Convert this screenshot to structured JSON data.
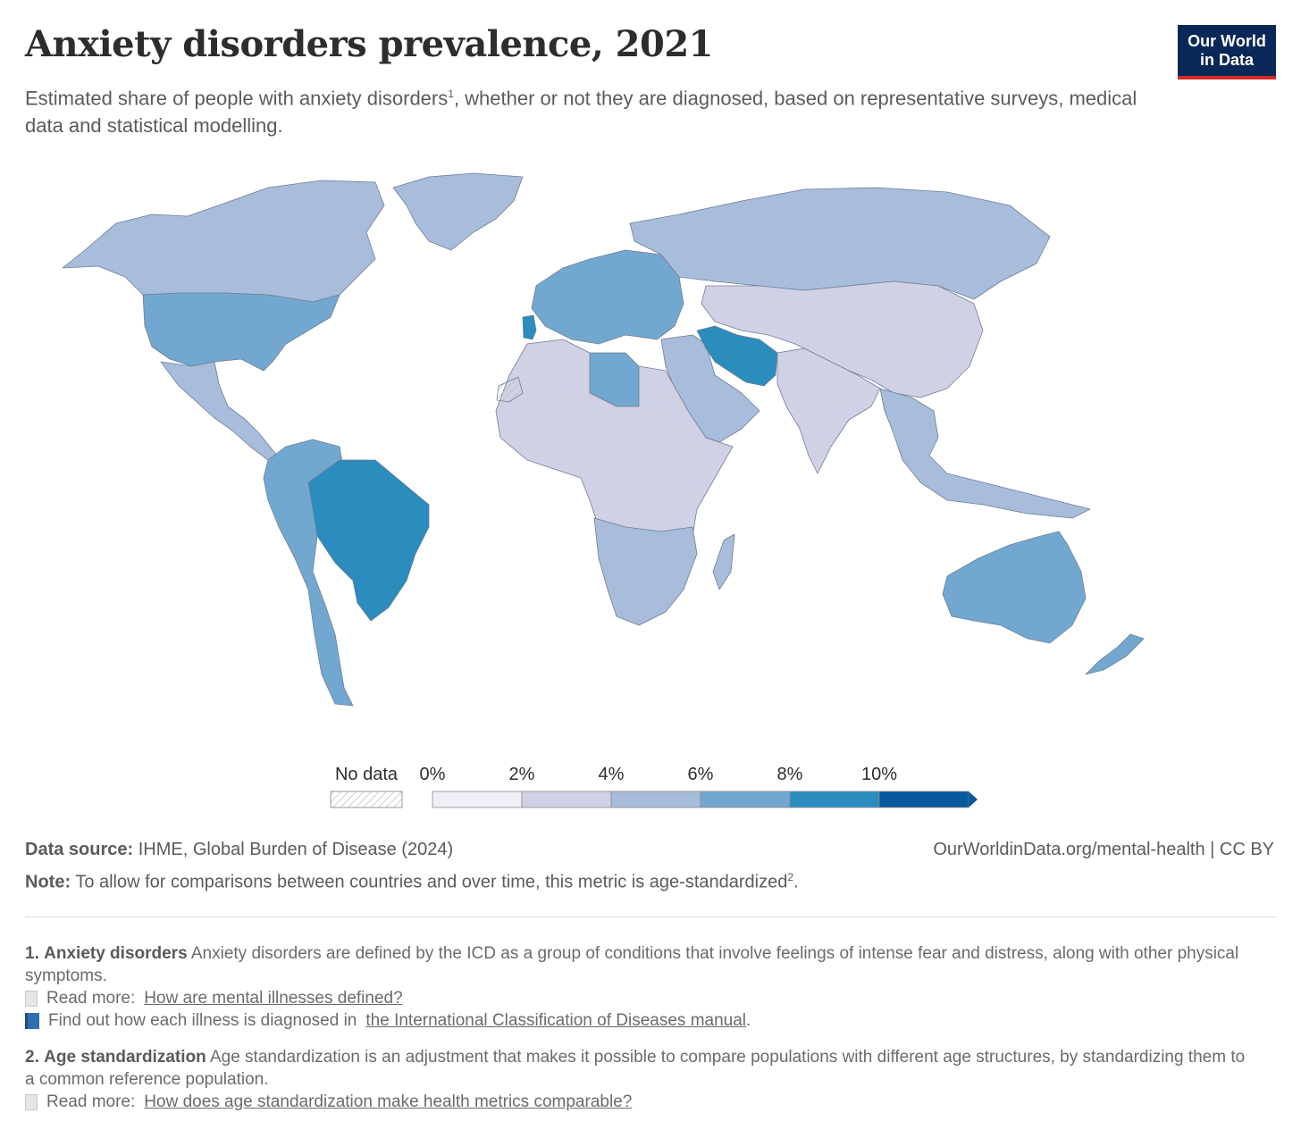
{
  "header": {
    "title": "Anxiety disorders prevalence, 2021",
    "subtitle_before": "Estimated share of people with anxiety disorders",
    "subtitle_sup": "1",
    "subtitle_after": ", whether or not they are diagnosed, based on representative surveys, medical data and statistical modelling.",
    "logo_line1": "Our World",
    "logo_line2": "in Data"
  },
  "colors": {
    "no_data": "#ffffff",
    "bin_0_2": "#f1eef7",
    "bin_2_4": "#d1d1e6",
    "bin_4_6": "#a7bddb",
    "bin_6_8": "#72a8d0",
    "bin_8_10": "#2b8cbe",
    "bin_10_plus": "#08589e",
    "logo_bg": "#0a2857",
    "logo_bar": "#d42b21"
  },
  "legend": {
    "no_data_label": "No data",
    "ticks": [
      "0%",
      "2%",
      "4%",
      "6%",
      "8%",
      "10%"
    ]
  },
  "map_regions": [
    {
      "name": "North America",
      "bin": "bin_4_6"
    },
    {
      "name": "United States",
      "bin": "bin_6_8"
    },
    {
      "name": "Greenland",
      "bin": "bin_4_6"
    },
    {
      "name": "Mexico and Central America",
      "bin": "bin_4_6"
    },
    {
      "name": "Brazil",
      "bin": "bin_8_10"
    },
    {
      "name": "South America",
      "bin": "bin_6_8"
    },
    {
      "name": "Europe",
      "bin": "bin_6_8"
    },
    {
      "name": "Portugal",
      "bin": "bin_8_10"
    },
    {
      "name": "Russia",
      "bin": "bin_4_6"
    },
    {
      "name": "Iran",
      "bin": "bin_8_10"
    },
    {
      "name": "Libya",
      "bin": "bin_6_8"
    },
    {
      "name": "Africa",
      "bin": "bin_2_4"
    },
    {
      "name": "Southern Africa",
      "bin": "bin_4_6"
    },
    {
      "name": "Middle East",
      "bin": "bin_4_6"
    },
    {
      "name": "Central Asia and China",
      "bin": "bin_2_4"
    },
    {
      "name": "India and South Asia",
      "bin": "bin_2_4"
    },
    {
      "name": "Southeast Asia",
      "bin": "bin_4_6"
    },
    {
      "name": "Australia",
      "bin": "bin_6_8"
    },
    {
      "name": "New Zealand",
      "bin": "bin_6_8"
    },
    {
      "name": "Western Sahara",
      "bin": "no_data"
    }
  ],
  "footer": {
    "source_label": "Data source:",
    "source_text": "IHME, Global Burden of Disease (2024)",
    "url": "OurWorldinData.org/mental-health | CC BY",
    "note_label": "Note:",
    "note_text": "To allow for comparisons between countries and over time, this metric is age-standardized",
    "note_sup": "2",
    "note_end": "."
  },
  "footnotes": [
    {
      "number": "1.",
      "term": "Anxiety disorders",
      "text": "Anxiety disorders are defined by the ICD as a group of conditions that involve feelings of intense fear and distress, along with other physical symptoms.",
      "link1_prefix": "Read more:",
      "link1_text": "How are mental illnesses defined?",
      "link2_prefix": "Find out how each illness is diagnosed in",
      "link2_text": "the International Classification of Diseases manual",
      "link2_suffix": "."
    },
    {
      "number": "2.",
      "term": "Age standardization",
      "text": "Age standardization is an adjustment that makes it possible to compare populations with different age structures, by standardizing them to a common reference population.",
      "link1_prefix": "Read more:",
      "link1_text": "How does age standardization make health metrics comparable?"
    }
  ]
}
